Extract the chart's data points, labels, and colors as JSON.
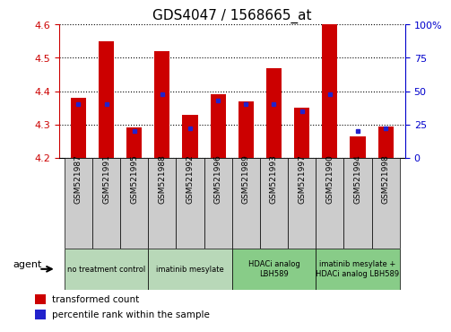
{
  "title": "GDS4047 / 1568665_at",
  "samples": [
    "GSM521987",
    "GSM521991",
    "GSM521995",
    "GSM521988",
    "GSM521992",
    "GSM521996",
    "GSM521989",
    "GSM521993",
    "GSM521997",
    "GSM521990",
    "GSM521994",
    "GSM521998"
  ],
  "bar_values": [
    4.38,
    4.55,
    4.29,
    4.52,
    4.33,
    4.39,
    4.37,
    4.47,
    4.35,
    4.6,
    4.265,
    4.295
  ],
  "percentile_values": [
    40,
    40,
    20,
    48,
    22,
    43,
    40,
    40,
    35,
    48,
    20,
    22
  ],
  "ylim_left": [
    4.2,
    4.6
  ],
  "ylim_right": [
    0,
    100
  ],
  "yticks_left": [
    4.2,
    4.3,
    4.4,
    4.5,
    4.6
  ],
  "yticks_right": [
    0,
    25,
    50,
    75,
    100
  ],
  "bar_color": "#cc0000",
  "dot_color": "#2222cc",
  "bar_width": 0.55,
  "groups": [
    {
      "label": "no treatment control",
      "start": 0,
      "end": 3
    },
    {
      "label": "imatinib mesylate",
      "start": 3,
      "end": 6
    },
    {
      "label": "HDACi analog\nLBH589",
      "start": 6,
      "end": 9
    },
    {
      "label": "imatinib mesylate +\nHDACi analog LBH589",
      "start": 9,
      "end": 12
    }
  ],
  "group_colors": [
    "#b8d8b8",
    "#b8d8b8",
    "#88cc88",
    "#88cc88"
  ],
  "agent_label": "agent",
  "legend_items": [
    {
      "label": "transformed count",
      "color": "#cc0000"
    },
    {
      "label": "percentile rank within the sample",
      "color": "#2222cc"
    }
  ],
  "left_axis_color": "#cc0000",
  "right_axis_color": "#0000cc",
  "sample_box_color": "#cccccc",
  "fig_bg": "#ffffff"
}
